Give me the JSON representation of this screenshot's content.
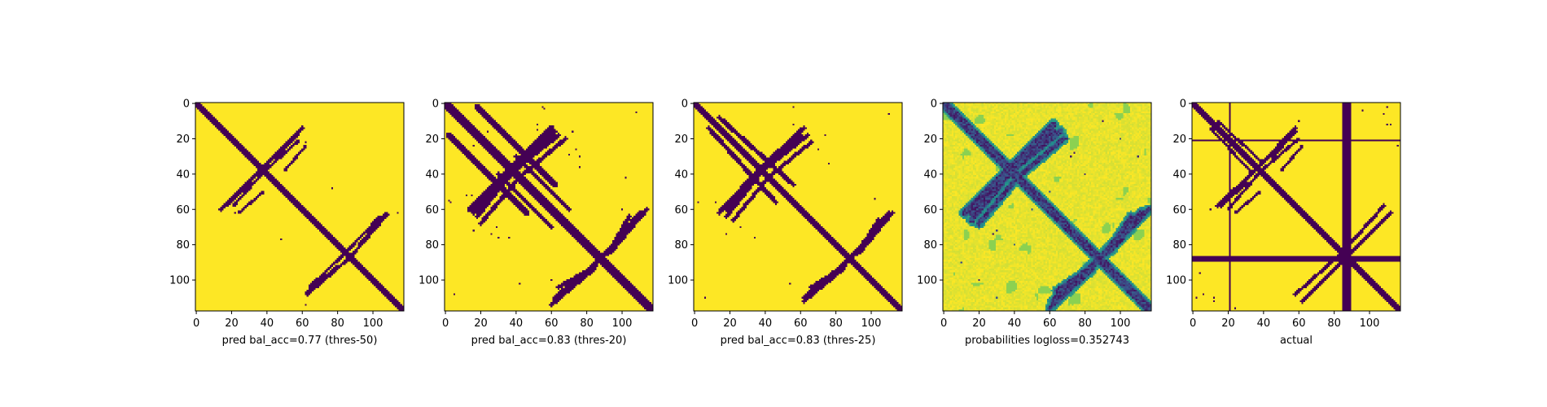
{
  "chart_data": [
    {
      "type": "heatmap",
      "xlabel": "pred bal_acc=0.77 (thres-50)",
      "colormap": "binary",
      "colors": {
        "low": "#440154",
        "high": "#fde725"
      },
      "matrix_size": 118,
      "xlim": [
        0,
        117
      ],
      "ylim": [
        117,
        0
      ],
      "xticks": [
        0,
        20,
        40,
        60,
        80,
        100
      ],
      "yticks": [
        0,
        20,
        40,
        60,
        80,
        100
      ],
      "contacts": {
        "diagonal_halfwidth": 1.6,
        "segments": [
          {
            "from": [
              35,
              39
            ],
            "to": [
              60,
              14
            ],
            "w": 1.1
          },
          {
            "from": [
              40,
              37
            ],
            "to": [
              58,
              21
            ],
            "w": 0.9
          },
          {
            "from": [
              30,
              45
            ],
            "to": [
              18,
              57
            ],
            "w": 1.0
          },
          {
            "from": [
              38,
              50
            ],
            "to": [
              24,
              62
            ],
            "w": 0.8
          },
          {
            "from": [
              88,
              86
            ],
            "to": [
              108,
              63
            ],
            "w": 1.0
          },
          {
            "from": [
              84,
              85
            ],
            "to": [
              64,
              104
            ],
            "w": 0.9
          },
          {
            "from": [
              80,
              92
            ],
            "to": [
              62,
              107
            ],
            "w": 0.7
          }
        ],
        "spots": [
          [
            62,
            108
          ],
          [
            114,
            62
          ],
          [
            77,
            48
          ],
          [
            22,
            62
          ]
        ]
      }
    },
    {
      "type": "heatmap",
      "xlabel": "pred bal_acc=0.83 (thres-20)",
      "colormap": "binary",
      "colors": {
        "low": "#440154",
        "high": "#fde725"
      },
      "matrix_size": 118,
      "xlim": [
        0,
        117
      ],
      "ylim": [
        117,
        0
      ],
      "xticks": [
        0,
        20,
        40,
        60,
        80,
        100
      ],
      "yticks": [
        0,
        20,
        40,
        60,
        80,
        100
      ],
      "contacts": {
        "diagonal_halfwidth": 2.2,
        "segments": [
          {
            "from": [
              18,
              2
            ],
            "to": [
              62,
              46
            ],
            "w": 1.6
          },
          {
            "from": [
              36,
              38
            ],
            "to": [
              60,
              14
            ],
            "w": 1.5
          },
          {
            "from": [
              40,
              37
            ],
            "to": [
              64,
              18
            ],
            "w": 1.3
          },
          {
            "from": [
              36,
              40
            ],
            "to": [
              16,
              62
            ],
            "w": 1.4
          },
          {
            "from": [
              40,
              44
            ],
            "to": [
              20,
              68
            ],
            "w": 1.2
          },
          {
            "from": [
              88,
              88
            ],
            "to": [
              112,
              62
            ],
            "w": 1.5
          },
          {
            "from": [
              92,
              85
            ],
            "to": [
              104,
              64
            ],
            "w": 1.2
          },
          {
            "from": [
              86,
              90
            ],
            "to": [
              62,
              110
            ],
            "w": 1.4
          },
          {
            "from": [
              84,
              94
            ],
            "to": [
              60,
              114
            ],
            "w": 1.1
          },
          {
            "from": [
              40,
              30
            ],
            "to": [
              70,
              60
            ],
            "w": 1.0
          }
        ],
        "spots": [
          [
            56,
            3
          ],
          [
            72,
            16
          ],
          [
            74,
            26
          ],
          [
            70,
            29
          ],
          [
            30,
            76
          ],
          [
            36,
            76
          ],
          [
            42,
            102
          ],
          [
            52,
            15
          ],
          [
            24,
            16
          ],
          [
            12,
            52
          ],
          [
            2,
            55
          ],
          [
            108,
            5
          ],
          [
            114,
            112
          ],
          [
            60,
            100
          ]
        ]
      }
    },
    {
      "type": "heatmap",
      "xlabel": "pred bal_acc=0.83 (thres-25)",
      "colormap": "binary",
      "colors": {
        "low": "#440154",
        "high": "#fde725"
      },
      "matrix_size": 118,
      "xlim": [
        0,
        117
      ],
      "ylim": [
        117,
        0
      ],
      "xticks": [
        0,
        20,
        40,
        60,
        80,
        100
      ],
      "yticks": [
        0,
        20,
        40,
        60,
        80,
        100
      ],
      "contacts": {
        "diagonal_halfwidth": 2.0,
        "segments": [
          {
            "from": [
              14,
              8
            ],
            "to": [
              56,
              46
            ],
            "w": 1.3
          },
          {
            "from": [
              36,
              38
            ],
            "to": [
              62,
              14
            ],
            "w": 1.4
          },
          {
            "from": [
              40,
              37
            ],
            "to": [
              64,
              18
            ],
            "w": 1.2
          },
          {
            "from": [
              36,
              40
            ],
            "to": [
              18,
              60
            ],
            "w": 1.3
          },
          {
            "from": [
              40,
              44
            ],
            "to": [
              22,
              66
            ],
            "w": 1.1
          },
          {
            "from": [
              88,
              88
            ],
            "to": [
              110,
              64
            ],
            "w": 1.4
          },
          {
            "from": [
              92,
              85
            ],
            "to": [
              104,
              66
            ],
            "w": 1.1
          },
          {
            "from": [
              86,
              90
            ],
            "to": [
              62,
              110
            ],
            "w": 1.3
          },
          {
            "from": [
              84,
              94
            ],
            "to": [
              62,
              112
            ],
            "w": 1.0
          }
        ],
        "spots": [
          [
            56,
            2
          ],
          [
            74,
            18
          ],
          [
            70,
            26
          ],
          [
            34,
            76
          ],
          [
            54,
            102
          ],
          [
            4,
            6
          ],
          [
            8,
            14
          ],
          [
            12,
            56
          ],
          [
            110,
            6
          ]
        ]
      }
    },
    {
      "type": "heatmap",
      "xlabel": "probabilities logloss=0.352743",
      "colormap": "viridis",
      "colors": {
        "low": "#440154",
        "mid1": "#21918c",
        "mid2": "#5ec962",
        "high": "#fde725"
      },
      "matrix_size": 118,
      "xlim": [
        0,
        117
      ],
      "ylim": [
        117,
        0
      ],
      "xticks": [
        0,
        20,
        40,
        60,
        80,
        100
      ],
      "yticks": [
        0,
        20,
        40,
        60,
        80,
        100
      ],
      "contacts": {
        "diagonal_halfwidth": 2.2,
        "segments": [
          {
            "from": [
              36,
              38
            ],
            "to": [
              62,
              12
            ],
            "w": 1.8
          },
          {
            "from": [
              40,
              37
            ],
            "to": [
              66,
              16
            ],
            "w": 1.5
          },
          {
            "from": [
              36,
              40
            ],
            "to": [
              16,
              62
            ],
            "w": 1.6
          },
          {
            "from": [
              40,
              44
            ],
            "to": [
              20,
              68
            ],
            "w": 1.3
          },
          {
            "from": [
              88,
              88
            ],
            "to": [
              112,
              62
            ],
            "w": 1.7
          },
          {
            "from": [
              92,
              85
            ],
            "to": [
              106,
              64
            ],
            "w": 1.3
          },
          {
            "from": [
              86,
              90
            ],
            "to": [
              62,
              112
            ],
            "w": 1.6
          },
          {
            "from": [
              84,
              94
            ],
            "to": [
              60,
              116
            ],
            "w": 1.2
          }
        ],
        "spots": [
          [
            70,
            20
          ],
          [
            74,
            28
          ],
          [
            30,
            72
          ],
          [
            40,
            80
          ],
          [
            100,
            20
          ],
          [
            110,
            30
          ],
          [
            10,
            90
          ],
          [
            20,
            100
          ],
          [
            80,
            40
          ],
          [
            50,
            60
          ]
        ]
      }
    },
    {
      "type": "heatmap",
      "xlabel": "actual",
      "colormap": "binary",
      "colors": {
        "low": "#440154",
        "high": "#fde725"
      },
      "matrix_size": 118,
      "xlim": [
        0,
        117
      ],
      "ylim": [
        117,
        0
      ],
      "xticks": [
        0,
        20,
        40,
        60,
        80,
        100
      ],
      "yticks": [
        0,
        20,
        40,
        60,
        80,
        100
      ],
      "contacts": {
        "diagonal_halfwidth": 1.6,
        "bands": [
          {
            "axis": "col",
            "index": 21,
            "halfwidth": 0.5
          },
          {
            "axis": "row",
            "index": 21,
            "halfwidth": 0.5
          },
          {
            "axis": "col",
            "index": 87,
            "halfwidth": 2.0
          },
          {
            "axis": "row",
            "index": 88,
            "halfwidth": 1.5
          }
        ],
        "segments": [
          {
            "from": [
              34,
              39
            ],
            "to": [
              58,
              14
            ],
            "w": 1.0
          },
          {
            "from": [
              40,
              37
            ],
            "to": [
              60,
              20
            ],
            "w": 0.9
          },
          {
            "from": [
              30,
              45
            ],
            "to": [
              16,
              58
            ],
            "w": 1.0
          },
          {
            "from": [
              38,
              50
            ],
            "to": [
              24,
              62
            ],
            "w": 0.8
          },
          {
            "from": [
              88,
              86
            ],
            "to": [
              112,
              62
            ],
            "w": 1.0
          },
          {
            "from": [
              84,
              85
            ],
            "to": [
              58,
              108
            ],
            "w": 1.0
          },
          {
            "from": [
              10,
              14
            ],
            "to": [
              34,
              40
            ],
            "w": 0.8
          }
        ],
        "spots": [
          [
            6,
            108
          ],
          [
            12,
            112
          ],
          [
            110,
            12
          ],
          [
            116,
            24
          ],
          [
            96,
            4
          ],
          [
            110,
            2
          ],
          [
            60,
            10
          ]
        ]
      }
    }
  ]
}
